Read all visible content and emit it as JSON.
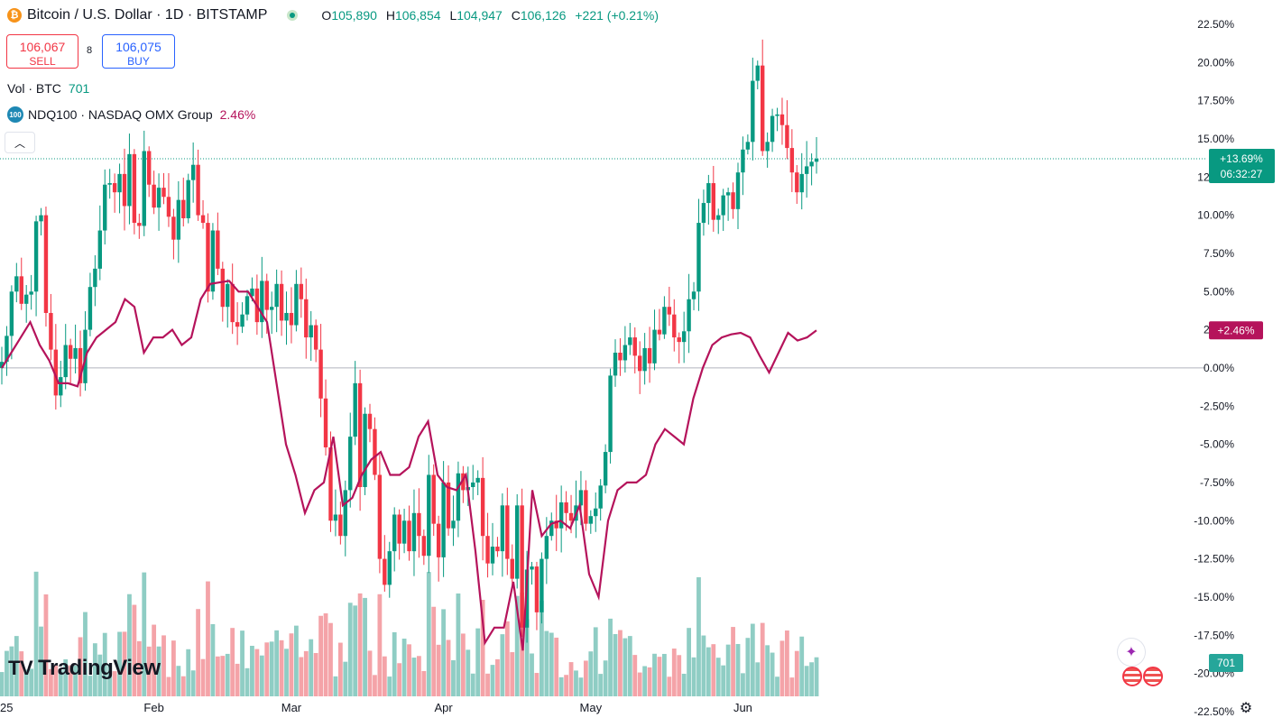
{
  "header": {
    "symbol_title": "Bitcoin / U.S. Dollar · 1D · BITSTAMP",
    "coin_glyph": "₿",
    "ohlc": {
      "o_label": "O",
      "o": "105,890",
      "h_label": "H",
      "h": "106,854",
      "l_label": "L",
      "l": "104,947",
      "c_label": "C",
      "c": "106,126",
      "change": "+221 (+0.21%)"
    }
  },
  "trade": {
    "sell_price": "106,067",
    "sell_label": "SELL",
    "spread": "8",
    "buy_price": "106,075",
    "buy_label": "BUY"
  },
  "volume_legend": {
    "label": "Vol · BTC",
    "value": "701"
  },
  "compare_legend": {
    "icon_text": "100",
    "label": "NDQ100 · NASDAQ OMX Group",
    "value": "2.46%"
  },
  "logo": {
    "text": "TradingView",
    "mark": "TV"
  },
  "colors": {
    "up": "#089981",
    "down": "#f23645",
    "compare": "#b5135b",
    "vol_up": "#8fcdc4",
    "vol_down": "#f4a3a8"
  },
  "icons": {
    "collapse": "chevron-up-icon",
    "settings": "gear-icon",
    "assistant": "sparkle-icon",
    "event": "us-flag-icon"
  },
  "chart_data": {
    "type": "candlestick",
    "y_axis": {
      "scale": "percent",
      "min": -21.5,
      "max": 23.5,
      "tick_labels": [
        "22.50%",
        "20.00%",
        "17.50%",
        "15.00%",
        "12.50%",
        "10.00%",
        "7.50%",
        "5.00%",
        "2.50%",
        "0.00%",
        "-2.50%",
        "-5.00%",
        "-7.50%",
        "-10.00%",
        "-12.50%",
        "-15.00%",
        "-17.50%",
        "-20.00%",
        "-22.50%"
      ],
      "tick_values": [
        22.5,
        20,
        17.5,
        15,
        12.5,
        10,
        7.5,
        5,
        2.5,
        0,
        -2.5,
        -5,
        -7.5,
        -10,
        -12.5,
        -15,
        -17.5,
        -20,
        -22.5
      ]
    },
    "x_axis": {
      "labels": [
        "25",
        "Feb",
        "Mar",
        "Apr",
        "May",
        "Jun"
      ],
      "label_positions_days": [
        0,
        31,
        59,
        90,
        120,
        151
      ]
    },
    "current_badges": {
      "btc_change": "+13.69%",
      "countdown": "06:32:27",
      "ndq_change": "+2.46%",
      "volume": "701"
    },
    "btc_close_pct": [
      0.4,
      2.1,
      5.0,
      6.0,
      4.2,
      4.8,
      5.0,
      9.6,
      10.0,
      3.6,
      1.2,
      -1.8,
      -0.6,
      1.5,
      0.6,
      1.3,
      -1.0,
      2.5,
      5.3,
      6.5,
      9.0,
      12.0,
      12.1,
      11.5,
      12.7,
      10.6,
      14.0,
      9.5,
      9.3,
      14.2,
      12.0,
      10.5,
      11.8,
      11.2,
      9.9,
      8.4,
      11.0,
      9.8,
      12.3,
      13.3,
      10.0,
      9.5,
      5.0,
      9.0,
      6.5,
      4.0,
      5.5,
      3.0,
      2.7,
      3.5,
      4.7,
      5.2,
      3.0,
      5.7,
      3.8,
      4.0,
      5.5,
      3.1,
      3.6,
      2.8,
      5.5,
      4.5,
      2.0,
      2.8,
      1.2,
      -2.0,
      -5.2,
      -10.0,
      -9.6,
      -11.0,
      -8.0,
      -4.5,
      -1.0,
      -7.8,
      -3.0,
      -4.0,
      -7.0,
      -12.5,
      -14.2,
      -12.0,
      -9.6,
      -11.5,
      -10.0,
      -12.0,
      -9.5,
      -11.0,
      -12.3,
      -7.0,
      -10.2,
      -12.4,
      -7.5,
      -10.5,
      -10.0,
      -6.9,
      -8.0,
      -7.8,
      -7.5,
      -7.2,
      -11.0,
      -12.8,
      -11.7,
      -12.0,
      -9.0,
      -12.5,
      -13.8,
      -9.0,
      -17.0,
      -13.2,
      -13.0,
      -16.0,
      -12.5,
      -11.0,
      -10.0,
      -10.5,
      -8.8,
      -9.5,
      -10.0,
      -9.0,
      -8.0,
      -10.2,
      -9.7,
      -9.2,
      -7.7,
      -5.5,
      -0.5,
      1.0,
      0.5,
      1.5,
      2.0,
      0.8,
      -0.2,
      1.3,
      0.3,
      2.5,
      2.2,
      4.0,
      3.5,
      2.0,
      1.7,
      2.4,
      4.5,
      5.0,
      9.5,
      10.8,
      12.1,
      9.7,
      10.0,
      11.3,
      11.5,
      10.4,
      12.8,
      14.3,
      14.8,
      18.8,
      19.8,
      14.2,
      14.8,
      16.5,
      16.6,
      15.9,
      14.4,
      12.8,
      11.5,
      12.7,
      13.2,
      13.5,
      13.7
    ],
    "ndq_close_pct": [
      0.0,
      1.0,
      2.0,
      3.0,
      1.5,
      0.5,
      -1.0,
      -1.0,
      -1.2,
      1.0,
      2.0,
      2.5,
      3.0,
      4.5,
      4.0,
      1.0,
      2.0,
      2.0,
      2.5,
      1.5,
      2.0,
      4.5,
      5.5,
      5.6,
      5.7,
      5.0,
      5.0,
      4.0,
      3.0,
      -1.0,
      -5.0,
      -7.0,
      -9.5,
      -8.0,
      -7.5,
      -4.5,
      -9.0,
      -8.5,
      -7.0,
      -6.0,
      -5.5,
      -7.0,
      -7.0,
      -6.5,
      -4.5,
      -3.5,
      -7.0,
      -7.8,
      -8.0,
      -7.0,
      -12.0,
      -18.0,
      -17.0,
      -17.0,
      -14.0,
      -18.5,
      -8.0,
      -11.0,
      -10.2,
      -10.0,
      -10.5,
      -9.0,
      -13.5,
      -15.0,
      -10.0,
      -8.0,
      -7.5,
      -7.5,
      -7.0,
      -5.0,
      -4.0,
      -4.5,
      -5.0,
      -2.0,
      0.0,
      1.5,
      2.0,
      2.2,
      2.3,
      2.0,
      0.8,
      -0.3,
      1.0,
      2.3,
      1.8,
      2.0,
      2.46
    ],
    "volume_note": "volume bars relative, max ~200 BTC"
  }
}
